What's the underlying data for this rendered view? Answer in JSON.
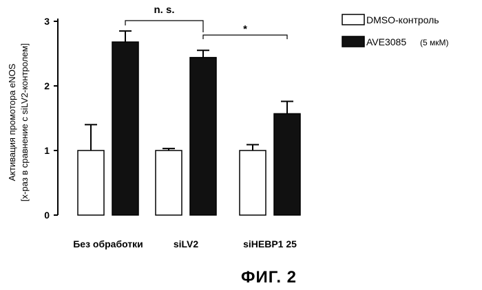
{
  "chart_data": {
    "type": "bar",
    "ylabel": [
      "Активация промотора eNOS",
      "[х-раз в сравнение с siLV2-контролем]"
    ],
    "ylim": [
      0,
      3
    ],
    "yticks": [
      "0",
      "1",
      "2",
      "3"
    ],
    "categories": [
      "Без обработки",
      "siLV2",
      "siHEBP1 25"
    ],
    "series": [
      {
        "name": "DMSO-контроль",
        "values": [
          1.0,
          1.0,
          1.0
        ],
        "errors": [
          0.4,
          0.03,
          0.09
        ],
        "fill": "white"
      },
      {
        "name": "AVE3085",
        "name_suffix": "(5 мкМ)",
        "values": [
          2.68,
          2.44,
          1.57
        ],
        "errors": [
          0.17,
          0.11,
          0.19
        ],
        "fill": "black"
      }
    ],
    "annotations": [
      {
        "text": "n. s.",
        "from": [
          0,
          1
        ],
        "to": [
          1,
          1
        ]
      },
      {
        "text": "*",
        "from": [
          1,
          1
        ],
        "to": [
          2,
          1
        ]
      }
    ],
    "legend_position": "top-right"
  },
  "caption": "ФИГ. 2"
}
